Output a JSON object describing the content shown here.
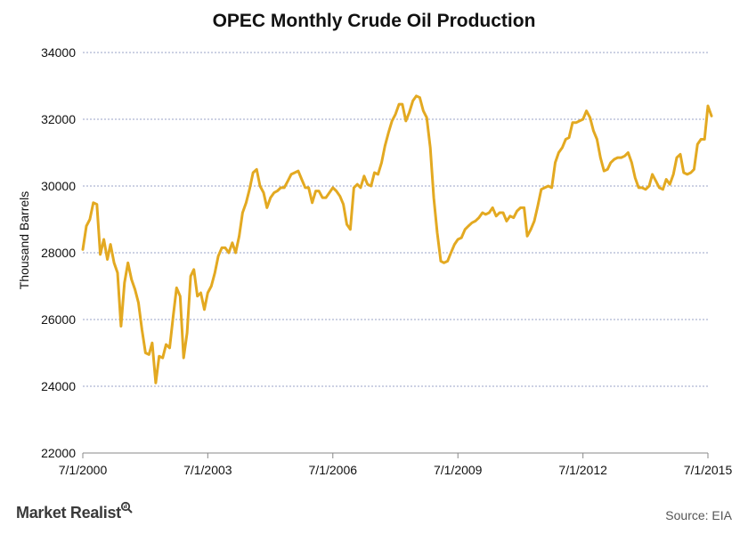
{
  "chart_data": {
    "type": "line",
    "title": "OPEC Monthly Crude Oil Production",
    "xlabel": "",
    "ylabel": "Thousand Barrels",
    "ylim": [
      22000,
      34000
    ],
    "yticks": [
      22000,
      24000,
      26000,
      28000,
      30000,
      32000,
      34000
    ],
    "xticks": [
      "7/1/2000",
      "7/1/2003",
      "7/1/2006",
      "7/1/2009",
      "7/1/2012",
      "7/1/2015"
    ],
    "xlim": [
      "7/1/2000",
      "9/1/2015"
    ],
    "grid": true,
    "legend": "none",
    "line_color": "#E3A921",
    "series": [
      {
        "x": [
          "7/1/2000",
          "8/1/2000",
          "9/1/2000",
          "10/1/2000",
          "11/1/2000",
          "12/1/2000",
          "1/1/2001",
          "2/1/2001",
          "3/1/2001",
          "4/1/2001",
          "5/1/2001",
          "6/1/2001",
          "7/1/2001",
          "8/1/2001",
          "9/1/2001",
          "10/1/2001",
          "11/1/2001",
          "12/1/2001",
          "1/1/2002",
          "2/1/2002",
          "3/1/2002",
          "4/1/2002",
          "5/1/2002",
          "6/1/2002",
          "7/1/2002",
          "8/1/2002",
          "9/1/2002",
          "10/1/2002",
          "11/1/2002",
          "12/1/2002",
          "1/1/2003",
          "2/1/2003",
          "3/1/2003",
          "4/1/2003",
          "5/1/2003",
          "6/1/2003",
          "7/1/2003",
          "8/1/2003",
          "9/1/2003",
          "10/1/2003",
          "11/1/2003",
          "12/1/2003",
          "1/1/2004",
          "2/1/2004",
          "3/1/2004",
          "4/1/2004",
          "5/1/2004",
          "6/1/2004",
          "7/1/2004",
          "8/1/2004",
          "9/1/2004",
          "10/1/2004",
          "11/1/2004",
          "12/1/2004",
          "1/1/2005",
          "2/1/2005",
          "3/1/2005",
          "4/1/2005",
          "5/1/2005",
          "6/1/2005",
          "7/1/2005",
          "8/1/2005",
          "9/1/2005",
          "10/1/2005",
          "11/1/2005",
          "12/1/2005",
          "1/1/2006",
          "2/1/2006",
          "3/1/2006",
          "4/1/2006",
          "5/1/2006",
          "6/1/2006",
          "7/1/2006",
          "8/1/2006",
          "9/1/2006",
          "10/1/2006",
          "11/1/2006",
          "12/1/2006",
          "1/1/2007",
          "2/1/2007",
          "3/1/2007",
          "4/1/2007",
          "5/1/2007",
          "6/1/2007",
          "7/1/2007",
          "8/1/2007",
          "9/1/2007",
          "10/1/2007",
          "11/1/2007",
          "12/1/2007",
          "1/1/2008",
          "2/1/2008",
          "3/1/2008",
          "4/1/2008",
          "5/1/2008",
          "6/1/2008",
          "7/1/2008",
          "8/1/2008",
          "9/1/2008",
          "10/1/2008",
          "11/1/2008",
          "12/1/2008",
          "1/1/2009",
          "2/1/2009",
          "3/1/2009",
          "4/1/2009",
          "5/1/2009",
          "6/1/2009",
          "7/1/2009",
          "8/1/2009",
          "9/1/2009",
          "10/1/2009",
          "11/1/2009",
          "12/1/2009",
          "1/1/2010",
          "2/1/2010",
          "3/1/2010",
          "4/1/2010",
          "5/1/2010",
          "6/1/2010",
          "7/1/2010",
          "8/1/2010",
          "9/1/2010",
          "10/1/2010",
          "11/1/2010",
          "12/1/2010",
          "1/1/2011",
          "2/1/2011",
          "3/1/2011",
          "4/1/2011",
          "5/1/2011",
          "6/1/2011",
          "7/1/2011",
          "8/1/2011",
          "9/1/2011",
          "10/1/2011",
          "11/1/2011",
          "12/1/2011",
          "1/1/2012",
          "2/1/2012",
          "3/1/2012",
          "4/1/2012",
          "5/1/2012",
          "6/1/2012",
          "7/1/2012",
          "8/1/2012",
          "9/1/2012",
          "10/1/2012",
          "11/1/2012",
          "12/1/2012",
          "1/1/2013",
          "2/1/2013",
          "3/1/2013",
          "4/1/2013",
          "5/1/2013",
          "6/1/2013",
          "7/1/2013",
          "8/1/2013",
          "9/1/2013",
          "10/1/2013",
          "11/1/2013",
          "12/1/2013",
          "1/1/2014",
          "2/1/2014",
          "3/1/2014",
          "4/1/2014",
          "5/1/2014",
          "6/1/2014",
          "7/1/2014",
          "8/1/2014",
          "9/1/2014",
          "10/1/2014",
          "11/1/2014",
          "12/1/2014",
          "1/1/2015",
          "2/1/2015",
          "3/1/2015",
          "4/1/2015",
          "5/1/2015",
          "6/1/2015",
          "7/1/2015",
          "8/1/2015"
        ],
        "y": [
          28100,
          28800,
          29000,
          29500,
          29450,
          27950,
          28400,
          27800,
          28250,
          27700,
          27400,
          25800,
          27100,
          27700,
          27200,
          26900,
          26500,
          25700,
          25000,
          24950,
          25300,
          24100,
          24900,
          24850,
          25250,
          25150,
          26100,
          26950,
          26700,
          24850,
          25600,
          27300,
          27500,
          26700,
          26800,
          26300,
          26800,
          27000,
          27400,
          27900,
          28150,
          28150,
          28000,
          28300,
          28000,
          28500,
          29200,
          29500,
          29900,
          30400,
          30500,
          30000,
          29800,
          29350,
          29650,
          29800,
          29850,
          29950,
          29950,
          30150,
          30350,
          30400,
          30450,
          30200,
          29950,
          29950,
          29500,
          29850,
          29850,
          29650,
          29650,
          29800,
          29950,
          29850,
          29700,
          29450,
          28850,
          28700,
          29950,
          30050,
          29950,
          30300,
          30050,
          30000,
          30400,
          30350,
          30700,
          31200,
          31600,
          31950,
          32150,
          32450,
          32450,
          31950,
          32200,
          32550,
          32700,
          32650,
          32250,
          32050,
          31150,
          29650,
          28600,
          27750,
          27700,
          27750,
          28000,
          28250,
          28400,
          28450,
          28700,
          28800,
          28900,
          28950,
          29050,
          29200,
          29150,
          29200,
          29350,
          29100,
          29200,
          29200,
          28950,
          29100,
          29050,
          29250,
          29350,
          29350,
          28500,
          28700,
          28950,
          29400,
          29900,
          29950,
          30000,
          29950,
          30700,
          31000,
          31150,
          31400,
          31450,
          31900,
          31900,
          31950,
          32000,
          32250,
          32050,
          31650,
          31400,
          30850,
          30450,
          30500,
          30700,
          30800,
          30850,
          30850,
          30900,
          31000,
          30700,
          30250,
          29950,
          29950,
          29900,
          30000,
          30350,
          30150,
          29950,
          29900,
          30200,
          30050,
          30350,
          30850,
          30950,
          30400,
          30350,
          30400,
          30500,
          31250,
          31400,
          31400,
          32400,
          32100
        ]
      }
    ]
  },
  "footer": {
    "brand": "Market Realist",
    "source": "Source: EIA"
  }
}
